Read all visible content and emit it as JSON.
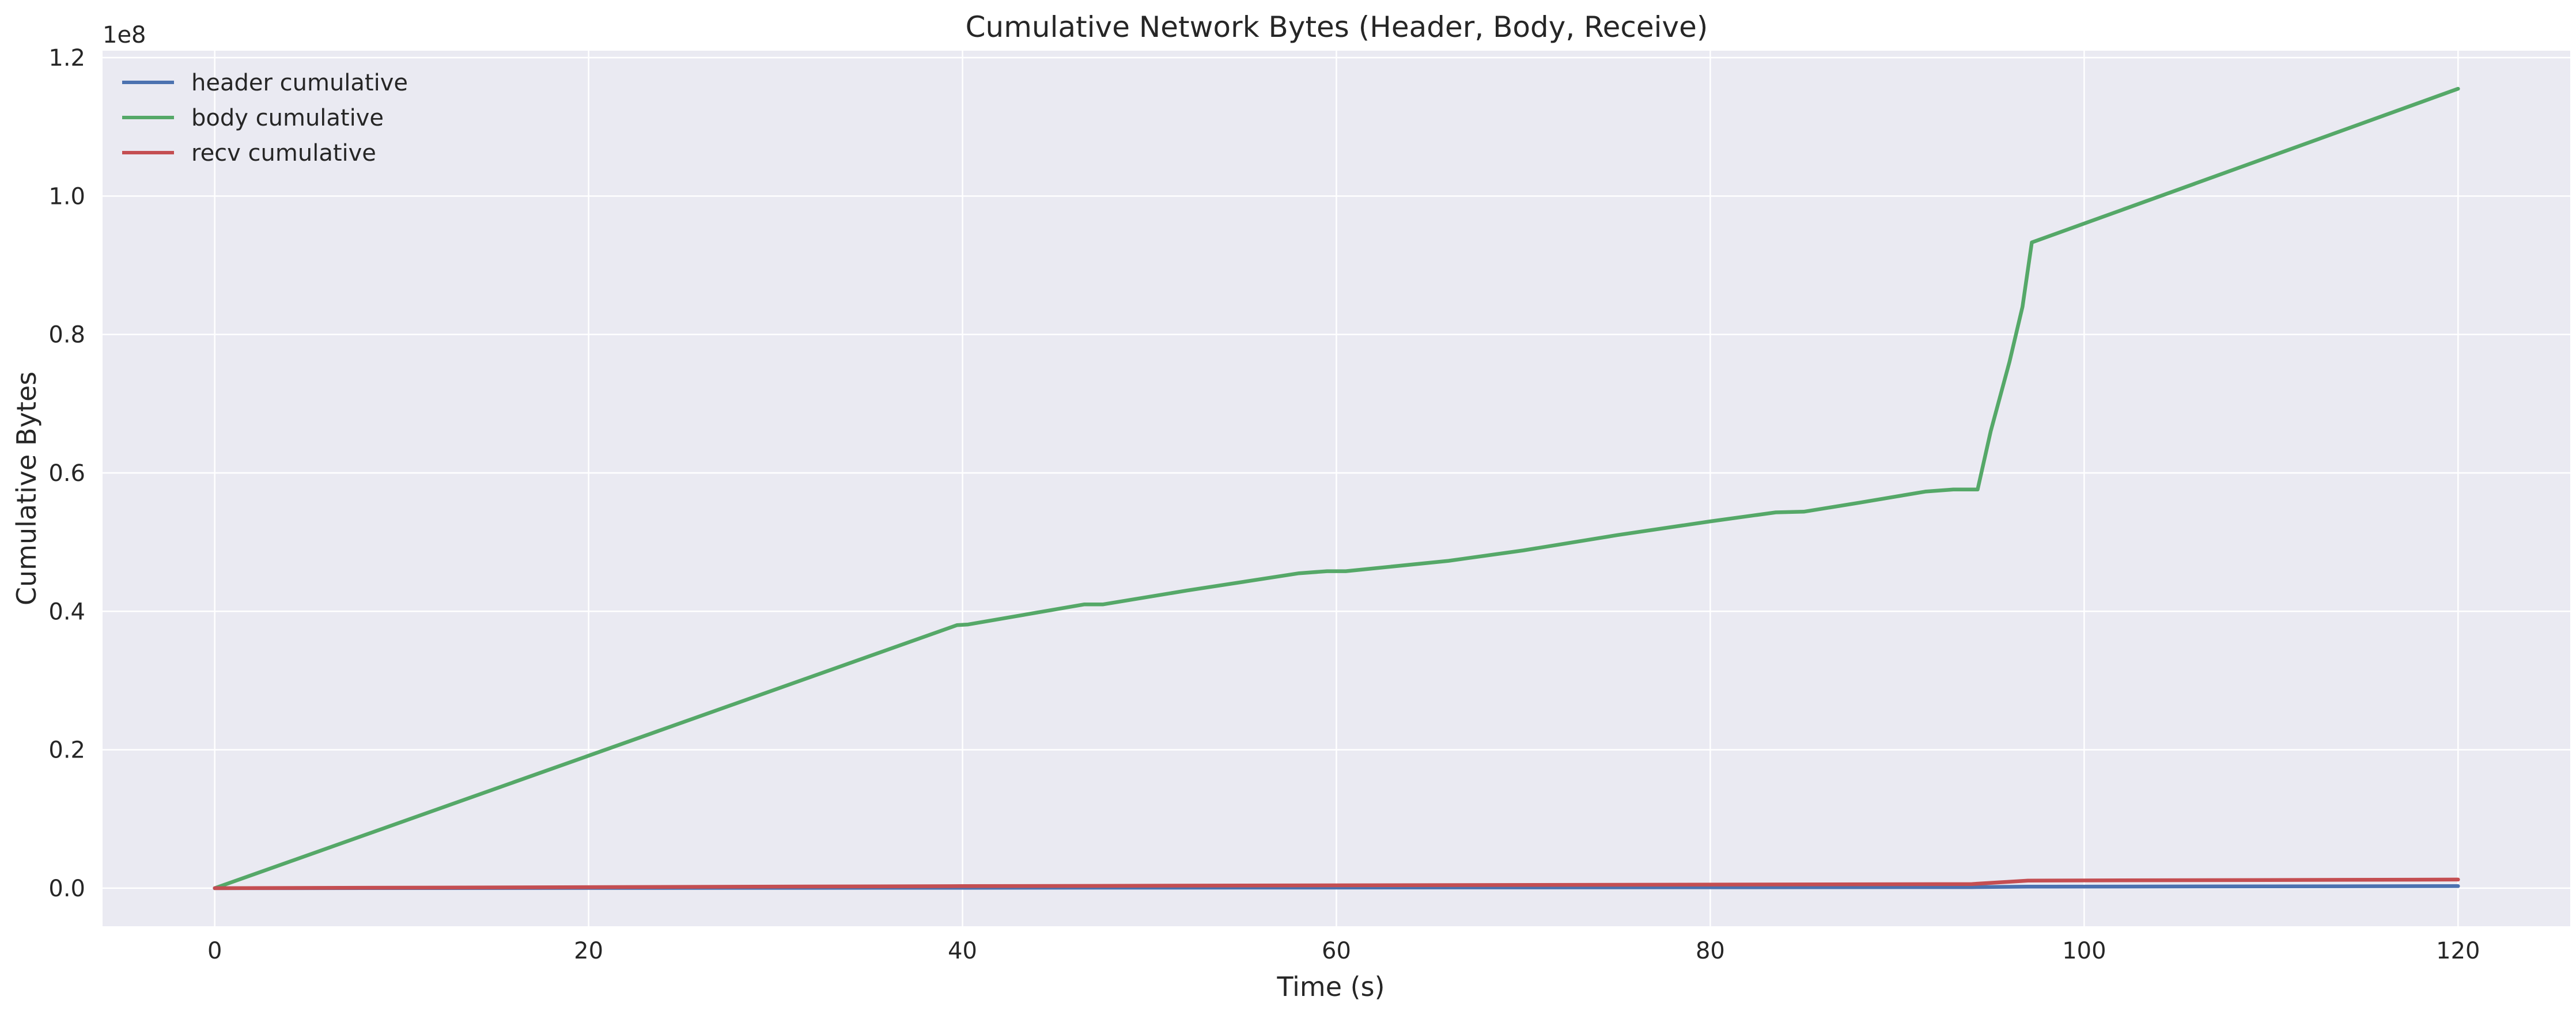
{
  "chart_data": {
    "type": "line",
    "title": "Cumulative Network Bytes (Header, Body, Receive)",
    "xlabel": "Time (s)",
    "ylabel": "Cumulative Bytes",
    "y_multiplier_label": "1e8",
    "xlim": [
      -6,
      126
    ],
    "ylim": [
      -5500000,
      121000000
    ],
    "x_ticks": [
      0,
      20,
      40,
      60,
      80,
      100,
      120
    ],
    "y_ticks": [
      0,
      20000000,
      40000000,
      60000000,
      80000000,
      100000000,
      120000000
    ],
    "y_tick_labels": [
      "0.0",
      "0.2",
      "0.4",
      "0.6",
      "0.8",
      "1.0",
      "1.2"
    ],
    "grid": true,
    "legend_position": "top-left",
    "series": [
      {
        "name": "header cumulative",
        "color": "#4c72b0",
        "x": [
          0,
          40,
          94,
          97,
          120
        ],
        "y": [
          0,
          60000,
          150000,
          220000,
          300000
        ]
      },
      {
        "name": "body cumulative",
        "color": "#55a868",
        "x": [
          0,
          39.7,
          40.3,
          46.5,
          47.5,
          52,
          58,
          59.5,
          60.5,
          66,
          70,
          75,
          80,
          83.5,
          85,
          88,
          91.5,
          93,
          94.3,
          95,
          96,
          96.7,
          97.2,
          120
        ],
        "y": [
          0,
          38000000,
          38100000,
          41000000,
          41000000,
          43000000,
          45500000,
          45800000,
          45800000,
          47300000,
          48800000,
          51000000,
          53000000,
          54300000,
          54400000,
          55700000,
          57300000,
          57600000,
          57600000,
          66000000,
          76000000,
          84000000,
          93300000,
          115500000
        ]
      },
      {
        "name": "recv cumulative",
        "color": "#c44e52",
        "x": [
          0,
          40,
          94,
          97,
          120
        ],
        "y": [
          0,
          300000,
          600000,
          1100000,
          1250000
        ]
      }
    ]
  }
}
